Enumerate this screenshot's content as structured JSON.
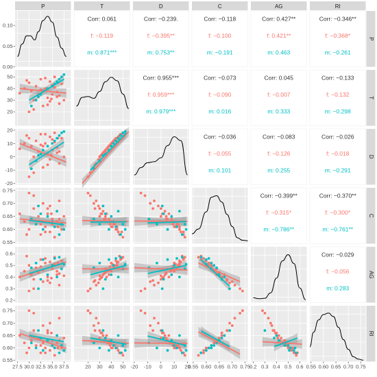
{
  "chart_data": {
    "type": "pairs",
    "variables": [
      "P",
      "T",
      "D",
      "C",
      "AG",
      "RI"
    ],
    "groups": [
      {
        "name": "f",
        "color": "#F8766D"
      },
      {
        "name": "m",
        "color": "#00BFC4"
      }
    ],
    "overall_color": "#333333",
    "axis_ticks": {
      "P": {
        "range": [
          27.0,
          39.0
        ],
        "ticks": [
          27.5,
          30.0,
          32.5,
          35.0,
          37.5
        ],
        "labels": [
          "27.5",
          "30.0",
          "32.5",
          "35.0",
          "37.5"
        ]
      },
      "T": {
        "range": [
          8,
          56
        ],
        "ticks": [
          20,
          30,
          40,
          50
        ],
        "labels": [
          "20",
          "30",
          "40",
          "50"
        ]
      },
      "D": {
        "range": [
          -21,
          21
        ],
        "ticks": [
          -20,
          -10,
          0,
          10,
          20
        ],
        "labels": [
          "-20",
          "-10",
          "0",
          "10",
          "20"
        ]
      },
      "C": {
        "range": [
          0.545,
          0.76
        ],
        "ticks": [
          0.55,
          0.6,
          0.65,
          0.7,
          0.75
        ],
        "labels": [
          "0.55",
          "0.60",
          "0.65",
          "0.70",
          "0.75"
        ]
      },
      "AG": {
        "range": [
          0.18,
          0.66
        ],
        "ticks": [
          0.2,
          0.3,
          0.4,
          0.5,
          0.6
        ],
        "labels": [
          "0.2",
          "0.3",
          "0.4",
          "0.5",
          "0.6"
        ]
      },
      "RI": {
        "range": [
          0.545,
          0.77
        ],
        "ticks": [
          0.55,
          0.6,
          0.65,
          0.7,
          0.75
        ],
        "labels": [
          "0.55",
          "0.60",
          "0.65",
          "0.70",
          "0.75"
        ]
      }
    },
    "density_axis": {
      "range": [
        0.0,
        0.135
      ],
      "ticks": [
        0.0,
        0.05,
        0.1
      ],
      "labels": [
        "0.00",
        "0.05",
        "0.10"
      ]
    },
    "correlations": [
      {
        "row": "P",
        "col": "T",
        "overall": "Corr: 0.061",
        "f": "f: −0.119",
        "m": "m: 0.871***"
      },
      {
        "row": "P",
        "col": "D",
        "overall": "Corr: −0.239.",
        "f": "f: −0.395**",
        "m": "m: 0.753**"
      },
      {
        "row": "P",
        "col": "C",
        "overall": "Corr: −0.118",
        "f": "f: −0.100",
        "m": "m: −0.191"
      },
      {
        "row": "P",
        "col": "AG",
        "overall": "Corr: 0.427**",
        "f": "f: 0.421**",
        "m": "m: 0.463"
      },
      {
        "row": "P",
        "col": "RI",
        "overall": "Corr: −0.346**",
        "f": "f: −0.368*",
        "m": "m: −0.261"
      },
      {
        "row": "T",
        "col": "D",
        "overall": "Corr: 0.955***",
        "f": "f: 0.959***",
        "m": "m: 0.979***"
      },
      {
        "row": "T",
        "col": "C",
        "overall": "Corr: −0.073",
        "f": "f: −0.090",
        "m": "m: 0.016"
      },
      {
        "row": "T",
        "col": "AG",
        "overall": "Corr: 0.045",
        "f": "f: −0.007",
        "m": "m: 0.333"
      },
      {
        "row": "T",
        "col": "RI",
        "overall": "Corr: −0.133",
        "f": "f: −0.132",
        "m": "m: −0.298"
      },
      {
        "row": "D",
        "col": "C",
        "overall": "Corr: −0.036",
        "f": "f: −0.055",
        "m": "m: 0.101"
      },
      {
        "row": "D",
        "col": "AG",
        "overall": "Corr: −0.083",
        "f": "f: −0.126",
        "m": "m: 0.255"
      },
      {
        "row": "D",
        "col": "RI",
        "overall": "Corr: −0.026",
        "f": "f: −0.018",
        "m": "m: −0.291"
      },
      {
        "row": "C",
        "col": "AG",
        "overall": "Corr: −0.399**",
        "f": "f: −0.315*",
        "m": "m: −0.786**"
      },
      {
        "row": "C",
        "col": "RI",
        "overall": "Corr: −0.370**",
        "f": "f: −0.300*",
        "m": "m: −0.761**"
      },
      {
        "row": "AG",
        "col": "RI",
        "overall": "Corr: −0.029",
        "f": "f: −0.056",
        "m": "m: 0.283"
      }
    ],
    "densities": [
      {
        "var": "P",
        "x": [
          27.5,
          28.5,
          29.5,
          30.3,
          31.2,
          32.0,
          33.0,
          34.0,
          35.0,
          36.0,
          37.0,
          38.0
        ],
        "y": [
          0.025,
          0.055,
          0.075,
          0.075,
          0.065,
          0.085,
          0.112,
          0.122,
          0.108,
          0.072,
          0.045,
          0.025
        ]
      },
      {
        "var": "T",
        "x": [
          10,
          15,
          20,
          25,
          30,
          35,
          40,
          45,
          50,
          55
        ],
        "y": [
          0.4,
          0.58,
          0.6,
          0.56,
          0.7,
          0.9,
          0.99,
          0.92,
          0.65,
          0.35
        ]
      },
      {
        "var": "D",
        "x": [
          -20,
          -15,
          -10,
          -5,
          0,
          5,
          10,
          15,
          20
        ],
        "y": [
          0.2,
          0.35,
          0.45,
          0.47,
          0.55,
          0.8,
          0.98,
          0.9,
          0.2
        ]
      },
      {
        "var": "C",
        "x": [
          0.545,
          0.57,
          0.6,
          0.62,
          0.64,
          0.66,
          0.68,
          0.7,
          0.72,
          0.74,
          0.76
        ],
        "y": [
          0.2,
          0.3,
          0.65,
          0.95,
          0.98,
          0.85,
          0.6,
          0.35,
          0.12,
          0.07,
          0.06
        ]
      },
      {
        "var": "AG",
        "x": [
          0.2,
          0.25,
          0.3,
          0.35,
          0.4,
          0.45,
          0.5,
          0.55,
          0.6,
          0.65
        ],
        "y": [
          0.1,
          0.08,
          0.09,
          0.2,
          0.5,
          0.85,
          0.98,
          0.8,
          0.3,
          0.06
        ]
      },
      {
        "var": "RI",
        "x": [
          0.545,
          0.56,
          0.58,
          0.6,
          0.62,
          0.64,
          0.66,
          0.68,
          0.7,
          0.72,
          0.74,
          0.76
        ],
        "y": [
          0.3,
          0.6,
          0.85,
          0.96,
          0.99,
          0.92,
          0.7,
          0.45,
          0.25,
          0.1,
          0.05,
          0.03
        ]
      }
    ],
    "scatter": {
      "P": {
        "f": [
          28.0,
          29.0,
          30.0,
          30.5,
          31.0,
          31.5,
          32.0,
          32.5,
          33.0,
          33.0,
          33.5,
          34.0,
          34.5,
          34.5,
          35.0,
          35.0,
          35.5,
          36.0,
          36.0,
          36.5,
          37.0,
          37.5,
          29.5,
          31.0,
          32.5,
          34.0,
          35.5,
          36.5,
          30.0,
          33.5,
          34.8,
          36.2
        ],
        "m": [
          30.5,
          31.5,
          32.5,
          33.0,
          34.0,
          35.0,
          35.5,
          36.0,
          36.5,
          37.0,
          37.5,
          32.0
        ]
      },
      "T": {
        "f": [
          36,
          40,
          45,
          38,
          30,
          42,
          35,
          48,
          25,
          38,
          40,
          32,
          46,
          29,
          35,
          43,
          50,
          33,
          37,
          27,
          44,
          30,
          47,
          22,
          39,
          26,
          41,
          34,
          20,
          49,
          31,
          45
        ],
        "m": [
          25,
          30,
          35,
          38,
          40,
          42,
          44,
          46,
          48,
          50,
          52,
          33
        ]
      },
      "D": {
        "f": [
          6,
          10,
          14,
          8,
          0,
          12,
          4,
          17,
          -8,
          8,
          10,
          2,
          15,
          -2,
          5,
          13,
          18,
          3,
          7,
          -5,
          14,
          0,
          16,
          -12,
          9,
          -6,
          11,
          4,
          -15,
          17,
          1,
          14
        ],
        "m": [
          -9,
          -3,
          2,
          5,
          8,
          10,
          12,
          14,
          16,
          18,
          19,
          1
        ]
      },
      "C": {
        "f": [
          0.66,
          0.63,
          0.6,
          0.64,
          0.68,
          0.62,
          0.65,
          0.58,
          0.7,
          0.63,
          0.61,
          0.66,
          0.59,
          0.69,
          0.64,
          0.62,
          0.57,
          0.67,
          0.63,
          0.71,
          0.6,
          0.65,
          0.58,
          0.73,
          0.62,
          0.68,
          0.61,
          0.64,
          0.74,
          0.59,
          0.66,
          0.61
        ],
        "m": [
          0.64,
          0.62,
          0.66,
          0.6,
          0.65,
          0.63,
          0.61,
          0.67,
          0.58,
          0.62,
          0.6,
          0.69
        ]
      },
      "AG": {
        "f": [
          0.4,
          0.45,
          0.5,
          0.42,
          0.38,
          0.48,
          0.44,
          0.55,
          0.36,
          0.46,
          0.52,
          0.4,
          0.53,
          0.35,
          0.47,
          0.5,
          0.57,
          0.42,
          0.45,
          0.33,
          0.54,
          0.41,
          0.58,
          0.3,
          0.49,
          0.37,
          0.51,
          0.43,
          0.28,
          0.56,
          0.39,
          0.52
        ],
        "m": [
          0.48,
          0.52,
          0.38,
          0.55,
          0.42,
          0.5,
          0.56,
          0.4,
          0.57,
          0.47,
          0.51,
          0.3
        ]
      },
      "RI": {
        "f": [
          0.65,
          0.62,
          0.6,
          0.63,
          0.67,
          0.61,
          0.64,
          0.58,
          0.69,
          0.62,
          0.6,
          0.66,
          0.59,
          0.7,
          0.63,
          0.61,
          0.57,
          0.65,
          0.62,
          0.72,
          0.6,
          0.64,
          0.58,
          0.74,
          0.61,
          0.67,
          0.6,
          0.63,
          0.75,
          0.58,
          0.66,
          0.6
        ],
        "m": [
          0.62,
          0.6,
          0.64,
          0.59,
          0.63,
          0.61,
          0.6,
          0.65,
          0.58,
          0.61,
          0.59,
          0.67
        ]
      }
    },
    "fits": [
      {
        "row": "T",
        "col": "P",
        "f": [
          [
            28.0,
            40
          ],
          [
            38.0,
            36
          ]
        ],
        "m": [
          [
            30.0,
            30
          ],
          [
            37.5,
            48
          ]
        ]
      },
      {
        "row": "D",
        "col": "P",
        "f": [
          [
            28.0,
            10
          ],
          [
            38.0,
            -4
          ]
        ],
        "m": [
          [
            30.0,
            -6
          ],
          [
            37.5,
            11
          ]
        ]
      },
      {
        "row": "C",
        "col": "P",
        "f": [
          [
            28.0,
            0.64
          ],
          [
            38.0,
            0.625
          ]
        ],
        "m": [
          [
            30.0,
            0.635
          ],
          [
            37.5,
            0.618
          ]
        ]
      },
      {
        "row": "AG",
        "col": "P",
        "f": [
          [
            28.0,
            0.4
          ],
          [
            38.0,
            0.53
          ]
        ],
        "m": [
          [
            30.0,
            0.43
          ],
          [
            37.5,
            0.52
          ]
        ]
      },
      {
        "row": "RI",
        "col": "P",
        "f": [
          [
            28.0,
            0.658
          ],
          [
            38.0,
            0.598
          ]
        ],
        "m": [
          [
            30.0,
            0.65
          ],
          [
            37.5,
            0.625
          ]
        ]
      },
      {
        "row": "D",
        "col": "T",
        "f": [
          [
            15,
            -20
          ],
          [
            55,
            19
          ]
        ],
        "m": [
          [
            22,
            -10
          ],
          [
            53,
            18
          ]
        ]
      },
      {
        "row": "C",
        "col": "T",
        "f": [
          [
            15,
            0.634
          ],
          [
            55,
            0.63
          ]
        ],
        "m": [
          [
            22,
            0.628
          ],
          [
            53,
            0.629
          ]
        ]
      },
      {
        "row": "AG",
        "col": "T",
        "f": [
          [
            15,
            0.47
          ],
          [
            55,
            0.47
          ]
        ],
        "m": [
          [
            22,
            0.42
          ],
          [
            53,
            0.5
          ]
        ]
      },
      {
        "row": "RI",
        "col": "T",
        "f": [
          [
            15,
            0.63
          ],
          [
            55,
            0.618
          ]
        ],
        "m": [
          [
            22,
            0.64
          ],
          [
            53,
            0.615
          ]
        ]
      },
      {
        "row": "C",
        "col": "D",
        "f": [
          [
            -20,
            0.632
          ],
          [
            20,
            0.631
          ]
        ],
        "m": [
          [
            -10,
            0.625
          ],
          [
            19,
            0.63
          ]
        ]
      },
      {
        "row": "AG",
        "col": "D",
        "f": [
          [
            -20,
            0.48
          ],
          [
            20,
            0.46
          ]
        ],
        "m": [
          [
            -10,
            0.43
          ],
          [
            19,
            0.5
          ]
        ]
      },
      {
        "row": "RI",
        "col": "D",
        "f": [
          [
            -20,
            0.62
          ],
          [
            20,
            0.618
          ]
        ],
        "m": [
          [
            -10,
            0.648
          ],
          [
            19,
            0.61
          ]
        ]
      },
      {
        "row": "AG",
        "col": "C",
        "f": [
          [
            0.57,
            0.52
          ],
          [
            0.73,
            0.36
          ]
        ],
        "m": [
          [
            0.58,
            0.55
          ],
          [
            0.69,
            0.32
          ]
        ]
      },
      {
        "row": "RI",
        "col": "C",
        "f": [
          [
            0.57,
            0.665
          ],
          [
            0.73,
            0.575
          ]
        ],
        "m": [
          [
            0.58,
            0.668
          ],
          [
            0.69,
            0.605
          ]
        ]
      },
      {
        "row": "RI",
        "col": "AG",
        "f": [
          [
            0.28,
            0.625
          ],
          [
            0.62,
            0.615
          ]
        ],
        "m": [
          [
            0.38,
            0.605
          ],
          [
            0.58,
            0.64
          ]
        ]
      }
    ],
    "xlabel": "",
    "ylabel": "",
    "grid": true
  }
}
